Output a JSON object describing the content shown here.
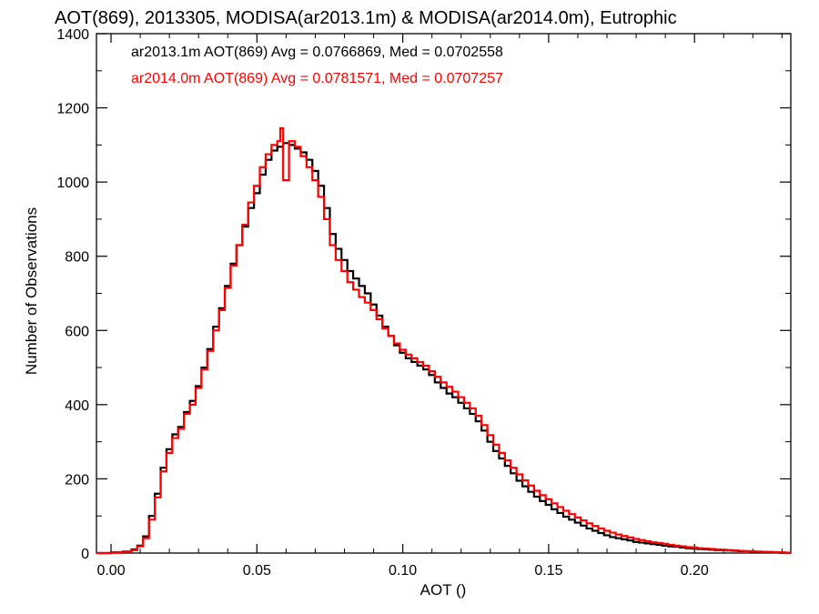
{
  "chart_data": {
    "type": "histogram",
    "title": "AOT(869), 2013305, MODISA(ar2013.1m) & MODISA(ar2014.0m), Eutrophic",
    "xlabel": "AOT ()",
    "ylabel": "Number of Observations",
    "xlim": [
      -0.005,
      0.233
    ],
    "ylim": [
      0,
      1400
    ],
    "xticks": [
      0.0,
      0.05,
      0.1,
      0.15,
      0.2
    ],
    "xtick_labels": [
      "0.00",
      "0.05",
      "0.10",
      "0.15",
      "0.20"
    ],
    "yticks": [
      0,
      200,
      400,
      600,
      800,
      1000,
      1200,
      1400
    ],
    "ytick_labels": [
      "0",
      "200",
      "400",
      "600",
      "800",
      "1000",
      "1200",
      "1400"
    ],
    "legend_position": "top-left",
    "series": [
      {
        "name": "ar2013.1m AOT(869) Avg = 0.0766869, Med = 0.0702558",
        "color": "#000000",
        "points": [
          [
            -0.005,
            0
          ],
          [
            0.0,
            2
          ],
          [
            0.004,
            4
          ],
          [
            0.007,
            10
          ],
          [
            0.009,
            20
          ],
          [
            0.011,
            45
          ],
          [
            0.013,
            100
          ],
          [
            0.015,
            160
          ],
          [
            0.017,
            230
          ],
          [
            0.019,
            280
          ],
          [
            0.021,
            320
          ],
          [
            0.023,
            340
          ],
          [
            0.025,
            380
          ],
          [
            0.027,
            410
          ],
          [
            0.029,
            450
          ],
          [
            0.031,
            500
          ],
          [
            0.033,
            550
          ],
          [
            0.035,
            610
          ],
          [
            0.037,
            660
          ],
          [
            0.039,
            720
          ],
          [
            0.041,
            780
          ],
          [
            0.043,
            830
          ],
          [
            0.045,
            880
          ],
          [
            0.047,
            930
          ],
          [
            0.049,
            970
          ],
          [
            0.051,
            1020
          ],
          [
            0.053,
            1060
          ],
          [
            0.055,
            1085
          ],
          [
            0.057,
            1095
          ],
          [
            0.059,
            1105
          ],
          [
            0.061,
            1100
          ],
          [
            0.063,
            1090
          ],
          [
            0.065,
            1080
          ],
          [
            0.067,
            1060
          ],
          [
            0.069,
            1030
          ],
          [
            0.071,
            990
          ],
          [
            0.073,
            930
          ],
          [
            0.075,
            860
          ],
          [
            0.077,
            820
          ],
          [
            0.079,
            790
          ],
          [
            0.081,
            760
          ],
          [
            0.083,
            740
          ],
          [
            0.085,
            720
          ],
          [
            0.087,
            700
          ],
          [
            0.089,
            670
          ],
          [
            0.091,
            640
          ],
          [
            0.093,
            610
          ],
          [
            0.095,
            585
          ],
          [
            0.097,
            560
          ],
          [
            0.099,
            540
          ],
          [
            0.101,
            525
          ],
          [
            0.103,
            515
          ],
          [
            0.105,
            505
          ],
          [
            0.107,
            495
          ],
          [
            0.109,
            480
          ],
          [
            0.111,
            460
          ],
          [
            0.113,
            445
          ],
          [
            0.115,
            430
          ],
          [
            0.117,
            420
          ],
          [
            0.119,
            405
          ],
          [
            0.121,
            390
          ],
          [
            0.123,
            375
          ],
          [
            0.125,
            355
          ],
          [
            0.127,
            330
          ],
          [
            0.129,
            300
          ],
          [
            0.131,
            275
          ],
          [
            0.133,
            255
          ],
          [
            0.135,
            235
          ],
          [
            0.137,
            215
          ],
          [
            0.139,
            195
          ],
          [
            0.141,
            180
          ],
          [
            0.143,
            165
          ],
          [
            0.145,
            152
          ],
          [
            0.147,
            140
          ],
          [
            0.149,
            130
          ],
          [
            0.151,
            118
          ],
          [
            0.153,
            108
          ],
          [
            0.155,
            98
          ],
          [
            0.157,
            90
          ],
          [
            0.159,
            82
          ],
          [
            0.161,
            74
          ],
          [
            0.163,
            66
          ],
          [
            0.165,
            60
          ],
          [
            0.167,
            54
          ],
          [
            0.169,
            48
          ],
          [
            0.171,
            43
          ],
          [
            0.173,
            40
          ],
          [
            0.175,
            37
          ],
          [
            0.177,
            34
          ],
          [
            0.179,
            30
          ],
          [
            0.181,
            28
          ],
          [
            0.183,
            26
          ],
          [
            0.185,
            24
          ],
          [
            0.187,
            22
          ],
          [
            0.189,
            20
          ],
          [
            0.191,
            18
          ],
          [
            0.193,
            17
          ],
          [
            0.195,
            15
          ],
          [
            0.197,
            13
          ],
          [
            0.199,
            12
          ],
          [
            0.201,
            11
          ],
          [
            0.203,
            10
          ],
          [
            0.205,
            9
          ],
          [
            0.207,
            8
          ],
          [
            0.209,
            8
          ],
          [
            0.211,
            7
          ],
          [
            0.213,
            6
          ],
          [
            0.215,
            5
          ],
          [
            0.217,
            5
          ],
          [
            0.219,
            4
          ],
          [
            0.221,
            3
          ],
          [
            0.223,
            3
          ],
          [
            0.225,
            2
          ],
          [
            0.227,
            2
          ],
          [
            0.229,
            1
          ],
          [
            0.231,
            1
          ]
        ]
      },
      {
        "name": "ar2014.0m AOT(869) Avg = 0.0781571, Med = 0.0707257",
        "color": "#ff0000",
        "points": [
          [
            -0.005,
            0
          ],
          [
            0.0,
            1
          ],
          [
            0.004,
            3
          ],
          [
            0.007,
            8
          ],
          [
            0.009,
            18
          ],
          [
            0.011,
            40
          ],
          [
            0.013,
            90
          ],
          [
            0.015,
            150
          ],
          [
            0.017,
            220
          ],
          [
            0.019,
            270
          ],
          [
            0.021,
            310
          ],
          [
            0.023,
            335
          ],
          [
            0.025,
            375
          ],
          [
            0.027,
            400
          ],
          [
            0.029,
            445
          ],
          [
            0.031,
            495
          ],
          [
            0.033,
            545
          ],
          [
            0.035,
            600
          ],
          [
            0.037,
            655
          ],
          [
            0.039,
            715
          ],
          [
            0.041,
            775
          ],
          [
            0.043,
            830
          ],
          [
            0.045,
            885
          ],
          [
            0.047,
            945
          ],
          [
            0.049,
            990
          ],
          [
            0.051,
            1040
          ],
          [
            0.053,
            1075
          ],
          [
            0.055,
            1100
          ],
          [
            0.057,
            1110
          ],
          [
            0.058,
            1145
          ],
          [
            0.059,
            1005
          ],
          [
            0.061,
            1110
          ],
          [
            0.063,
            1095
          ],
          [
            0.065,
            1070
          ],
          [
            0.067,
            1040
          ],
          [
            0.069,
            1005
          ],
          [
            0.071,
            960
          ],
          [
            0.073,
            900
          ],
          [
            0.075,
            830
          ],
          [
            0.077,
            790
          ],
          [
            0.079,
            760
          ],
          [
            0.081,
            730
          ],
          [
            0.083,
            710
          ],
          [
            0.085,
            690
          ],
          [
            0.087,
            675
          ],
          [
            0.089,
            655
          ],
          [
            0.091,
            630
          ],
          [
            0.093,
            605
          ],
          [
            0.095,
            585
          ],
          [
            0.097,
            565
          ],
          [
            0.099,
            548
          ],
          [
            0.101,
            535
          ],
          [
            0.103,
            525
          ],
          [
            0.105,
            515
          ],
          [
            0.107,
            505
          ],
          [
            0.109,
            490
          ],
          [
            0.111,
            475
          ],
          [
            0.113,
            460
          ],
          [
            0.115,
            448
          ],
          [
            0.117,
            435
          ],
          [
            0.119,
            420
          ],
          [
            0.121,
            405
          ],
          [
            0.123,
            390
          ],
          [
            0.125,
            370
          ],
          [
            0.127,
            345
          ],
          [
            0.129,
            318
          ],
          [
            0.131,
            292
          ],
          [
            0.133,
            270
          ],
          [
            0.135,
            250
          ],
          [
            0.137,
            230
          ],
          [
            0.139,
            212
          ],
          [
            0.141,
            196
          ],
          [
            0.143,
            182
          ],
          [
            0.145,
            168
          ],
          [
            0.147,
            156
          ],
          [
            0.149,
            145
          ],
          [
            0.151,
            134
          ],
          [
            0.153,
            124
          ],
          [
            0.155,
            114
          ],
          [
            0.157,
            105
          ],
          [
            0.159,
            96
          ],
          [
            0.161,
            88
          ],
          [
            0.163,
            80
          ],
          [
            0.165,
            73
          ],
          [
            0.167,
            66
          ],
          [
            0.169,
            60
          ],
          [
            0.171,
            55
          ],
          [
            0.173,
            50
          ],
          [
            0.175,
            46
          ],
          [
            0.177,
            42
          ],
          [
            0.179,
            38
          ],
          [
            0.181,
            35
          ],
          [
            0.183,
            32
          ],
          [
            0.185,
            29
          ],
          [
            0.187,
            27
          ],
          [
            0.189,
            25
          ],
          [
            0.191,
            22
          ],
          [
            0.193,
            20
          ],
          [
            0.195,
            18
          ],
          [
            0.197,
            16
          ],
          [
            0.199,
            15
          ],
          [
            0.201,
            13
          ],
          [
            0.203,
            12
          ],
          [
            0.205,
            11
          ],
          [
            0.207,
            10
          ],
          [
            0.209,
            9
          ],
          [
            0.211,
            8
          ],
          [
            0.213,
            7
          ],
          [
            0.215,
            6
          ],
          [
            0.217,
            5
          ],
          [
            0.219,
            5
          ],
          [
            0.221,
            4
          ],
          [
            0.223,
            3
          ],
          [
            0.225,
            3
          ],
          [
            0.227,
            2
          ],
          [
            0.229,
            2
          ],
          [
            0.231,
            1
          ]
        ]
      }
    ]
  }
}
